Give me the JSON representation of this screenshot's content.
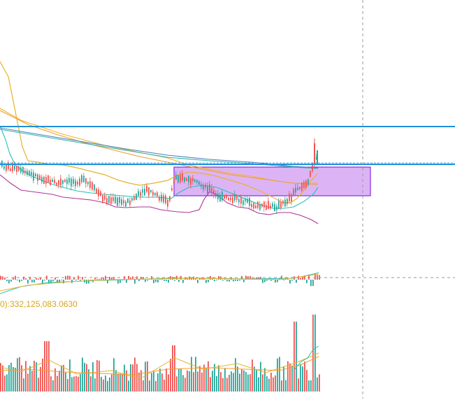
{
  "colors": {
    "up": "#26a69a",
    "down": "#ef5350",
    "ma_short": "#e8b12b",
    "ma_mid": "#f39c30",
    "boll_upper": "#f0b429",
    "boll_lower": "#b0339a",
    "boll_mid": "#28c1b5",
    "ema_slow": "#4a7dbf",
    "ema_slow2": "#2bb3a8",
    "hline": "#1e90d9",
    "zone_fill": "#c98cf0",
    "zone_border": "#8a2be2",
    "crosshair": "#9a9a9a",
    "vol_label": "#d8a51d"
  },
  "volume_panel": {
    "label": "0):332,125,083.0630"
  },
  "chart_data": [
    {
      "type": "candlestick",
      "title": "",
      "grid": false,
      "overlays": [
        "moving averages",
        "bollinger bands",
        "two horizontal price levels",
        "purple highlighted range box"
      ],
      "trend": "sideways-to-down, then sharp breakout at right edge"
    },
    {
      "type": "bar",
      "title": "",
      "label": "0):332,125,083.0630",
      "note": "MACD-style histogram"
    },
    {
      "type": "bar",
      "title": "",
      "note": "volume bars with moving-average lines"
    }
  ]
}
